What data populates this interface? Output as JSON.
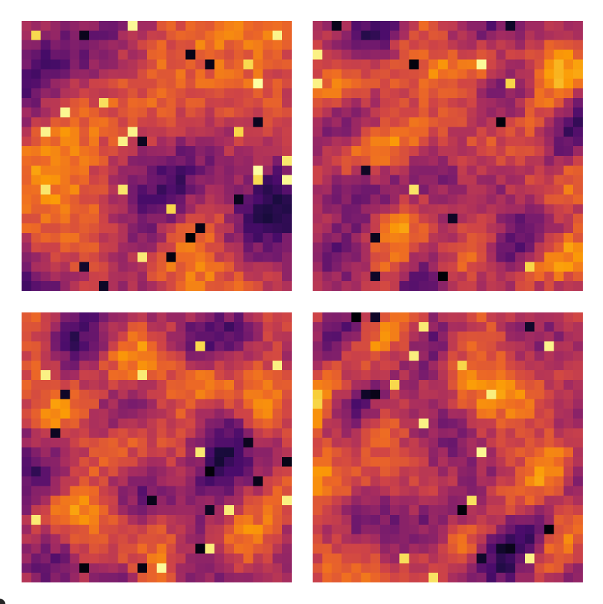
{
  "figure": {
    "panel_count": 4,
    "grid": "2x2",
    "colormap": "inferno",
    "colormap_stops": [
      "#000004",
      "#1b0c41",
      "#4a0c6b",
      "#781c6d",
      "#a52c60",
      "#cf4446",
      "#ed6925",
      "#fb9b06",
      "#f7d13d",
      "#fcffa4"
    ],
    "background": "#ffffff",
    "panels": [
      {
        "id": "top-left",
        "cells": 28
      },
      {
        "id": "top-right",
        "cells": 28
      },
      {
        "id": "bottom-left",
        "cells": 28
      },
      {
        "id": "bottom-right",
        "cells": 28
      }
    ]
  }
}
